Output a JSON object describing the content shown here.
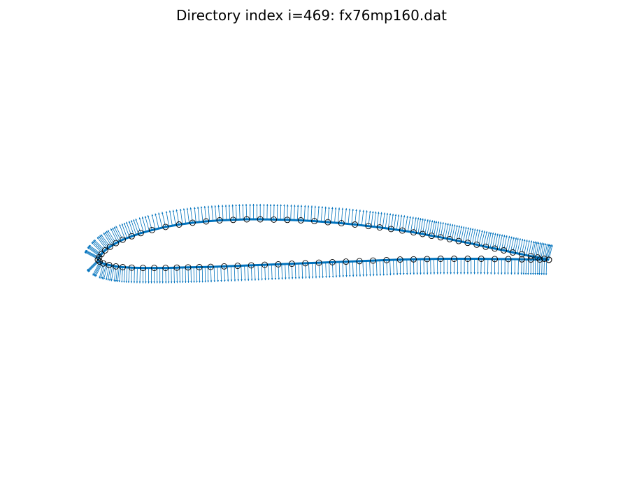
{
  "figure": {
    "title": "Directory index i=469: fx76mp160.dat"
  },
  "chart_data": {
    "type": "scatter",
    "title": "Directory index i=469: fx76mp160.dat",
    "xlabel": "",
    "ylabel": "",
    "axes_visible": false,
    "grid": false,
    "colors": {
      "outline": "#0072bd",
      "normals": "#0072bd",
      "markers": "#000000"
    },
    "series": [
      {
        "marker": "open-circle",
        "normal_vectors": true,
        "upper_surface": [
          [
            1.0,
            0.0
          ],
          [
            0.99,
            0.004
          ],
          [
            0.975,
            0.009
          ],
          [
            0.96,
            0.014
          ],
          [
            0.94,
            0.021
          ],
          [
            0.92,
            0.028
          ],
          [
            0.9,
            0.036
          ],
          [
            0.88,
            0.043
          ],
          [
            0.86,
            0.05
          ],
          [
            0.84,
            0.058
          ],
          [
            0.82,
            0.065
          ],
          [
            0.8,
            0.072
          ],
          [
            0.78,
            0.079
          ],
          [
            0.76,
            0.086
          ],
          [
            0.74,
            0.092
          ],
          [
            0.72,
            0.099
          ],
          [
            0.7,
            0.105
          ],
          [
            0.675,
            0.112
          ],
          [
            0.65,
            0.118
          ],
          [
            0.625,
            0.124
          ],
          [
            0.6,
            0.129
          ],
          [
            0.57,
            0.135
          ],
          [
            0.54,
            0.14
          ],
          [
            0.51,
            0.144
          ],
          [
            0.48,
            0.148
          ],
          [
            0.45,
            0.151
          ],
          [
            0.42,
            0.153
          ],
          [
            0.39,
            0.154
          ],
          [
            0.36,
            0.155
          ],
          [
            0.33,
            0.155
          ],
          [
            0.3,
            0.153
          ],
          [
            0.27,
            0.151
          ],
          [
            0.24,
            0.147
          ],
          [
            0.21,
            0.142
          ],
          [
            0.18,
            0.135
          ],
          [
            0.15,
            0.126
          ],
          [
            0.12,
            0.114
          ],
          [
            0.095,
            0.102
          ],
          [
            0.075,
            0.09
          ],
          [
            0.055,
            0.077
          ],
          [
            0.04,
            0.064
          ],
          [
            0.027,
            0.05
          ],
          [
            0.016,
            0.036
          ],
          [
            0.008,
            0.022
          ],
          [
            0.003,
            0.01
          ],
          [
            0.0,
            0.0
          ]
        ],
        "lower_surface": [
          [
            0.0,
            0.0
          ],
          [
            0.004,
            -0.007
          ],
          [
            0.012,
            -0.014
          ],
          [
            0.025,
            -0.02
          ],
          [
            0.04,
            -0.025
          ],
          [
            0.055,
            -0.028
          ],
          [
            0.075,
            -0.03
          ],
          [
            0.1,
            -0.031
          ],
          [
            0.125,
            -0.031
          ],
          [
            0.15,
            -0.031
          ],
          [
            0.175,
            -0.03
          ],
          [
            0.2,
            -0.029
          ],
          [
            0.225,
            -0.028
          ],
          [
            0.25,
            -0.027
          ],
          [
            0.28,
            -0.025
          ],
          [
            0.31,
            -0.023
          ],
          [
            0.34,
            -0.021
          ],
          [
            0.37,
            -0.019
          ],
          [
            0.4,
            -0.017
          ],
          [
            0.43,
            -0.015
          ],
          [
            0.46,
            -0.013
          ],
          [
            0.49,
            -0.011
          ],
          [
            0.52,
            -0.009
          ],
          [
            0.55,
            -0.007
          ],
          [
            0.58,
            -0.005
          ],
          [
            0.61,
            -0.003
          ],
          [
            0.64,
            -0.001
          ],
          [
            0.67,
            0.001
          ],
          [
            0.7,
            0.002
          ],
          [
            0.73,
            0.003
          ],
          [
            0.76,
            0.004
          ],
          [
            0.79,
            0.004
          ],
          [
            0.82,
            0.004
          ],
          [
            0.85,
            0.004
          ],
          [
            0.88,
            0.003
          ],
          [
            0.91,
            0.003
          ],
          [
            0.94,
            0.002
          ],
          [
            0.96,
            0.001
          ],
          [
            0.98,
            0.001
          ],
          [
            1.0,
            0.0
          ]
        ]
      }
    ]
  }
}
